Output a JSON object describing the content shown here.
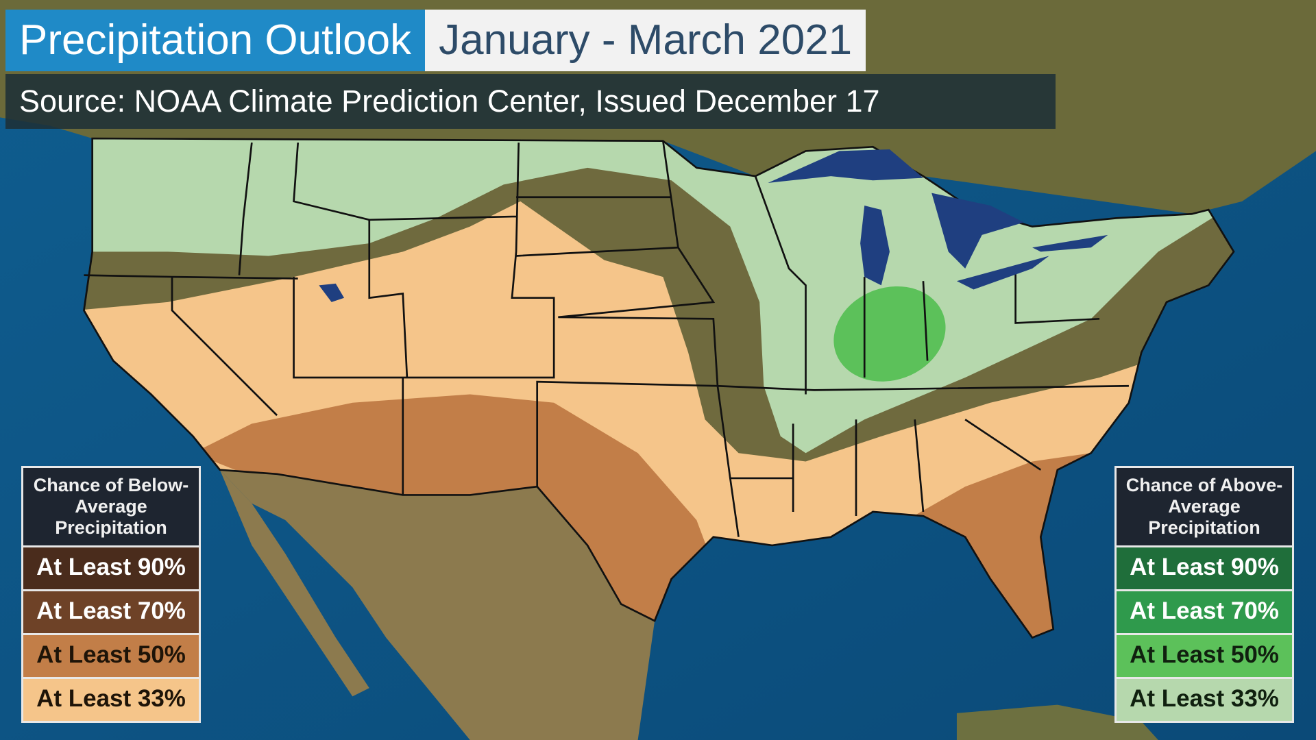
{
  "title": {
    "main": "Precipitation Outlook",
    "period": "January - March 2021"
  },
  "source": "Source: NOAA Climate Prediction Center, Issued December 17",
  "legend_below": {
    "heading": "Chance of Below-Average Precipitation",
    "items": [
      {
        "label": "At Least 90%",
        "color": "#4a2c1c",
        "text_color": "#ffffff"
      },
      {
        "label": "At Least 70%",
        "color": "#6e4227",
        "text_color": "#ffffff"
      },
      {
        "label": "At Least 50%",
        "color": "#c27e48",
        "text_color": "#1e1408"
      },
      {
        "label": "At Least 33%",
        "color": "#f5c58a",
        "text_color": "#1e1408"
      }
    ]
  },
  "legend_above": {
    "heading": "Chance of Above-Average Precipitation",
    "items": [
      {
        "label": "At Least 90%",
        "color": "#1f6e3a",
        "text_color": "#ffffff"
      },
      {
        "label": "At Least 70%",
        "color": "#2f9a4c",
        "text_color": "#ffffff"
      },
      {
        "label": "At Least 50%",
        "color": "#5cc15a",
        "text_color": "#10200f"
      },
      {
        "label": "At Least 33%",
        "color": "#b6d8ad",
        "text_color": "#10200f"
      }
    ]
  }
}
